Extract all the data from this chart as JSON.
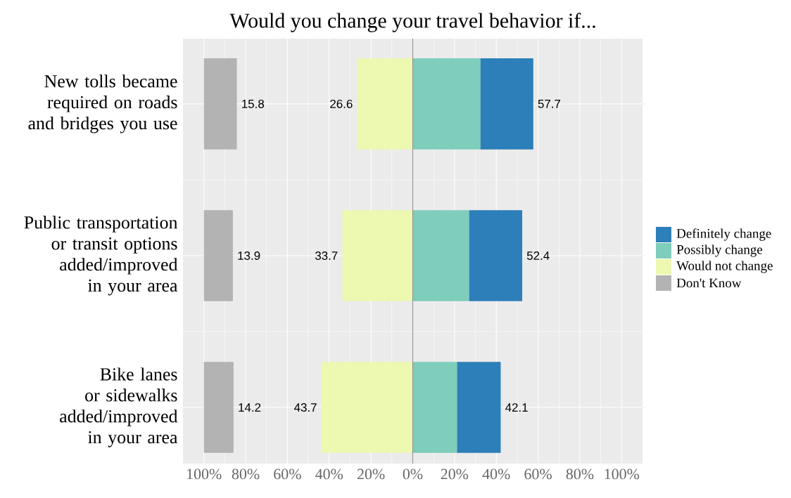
{
  "chart_data": {
    "type": "bar",
    "orientation": "horizontal",
    "title": "Would you change your travel behavior if...",
    "categories": [
      "New tolls became required on roads and bridges you use",
      "Public transportation or transit options added/improved in your area",
      "Bike lanes or sidewalks added/improved in your area"
    ],
    "series": [
      {
        "name": "Possibly change",
        "color": "#7fcdbb",
        "values": [
          32.4,
          27.0,
          21.2
        ],
        "base": [
          0,
          0,
          0
        ]
      },
      {
        "name": "Definitely change",
        "color": "#2c7fb8",
        "values": [
          25.3,
          25.4,
          20.9
        ],
        "base": [
          32.4,
          27.0,
          21.2
        ]
      },
      {
        "name": "Would not change",
        "color": "#edf8b1",
        "values": [
          26.6,
          33.7,
          43.7
        ],
        "base": [
          -26.6,
          -33.7,
          -43.7
        ],
        "value_labels": [
          "26.6",
          "33.7",
          "43.7"
        ]
      },
      {
        "name": "Don't Know",
        "color": "#b3b3b3",
        "values": [
          15.8,
          13.9,
          14.2
        ],
        "base": [
          -100,
          -100,
          -100
        ],
        "value_labels": [
          "15.8",
          "13.9",
          "14.2"
        ]
      }
    ],
    "annotations": [
      {
        "text": "57.7",
        "x": 57.7,
        "y": "New tolls became required on roads and bridges you use"
      },
      {
        "text": "52.4",
        "x": 52.4,
        "y": "Public transportation or transit options added/improved in your area"
      },
      {
        "text": "42.1",
        "x": 42.1,
        "y": "Bike lanes or sidewalks added/improved in your area"
      }
    ],
    "xlim": [
      -110,
      110
    ],
    "xticks": [
      {
        "value": -100,
        "label": "100%"
      },
      {
        "value": -80,
        "label": "80%"
      },
      {
        "value": -60,
        "label": "60%"
      },
      {
        "value": -40,
        "label": "40%"
      },
      {
        "value": -20,
        "label": "20%"
      },
      {
        "value": 0,
        "label": "0%"
      },
      {
        "value": 20,
        "label": "20%"
      },
      {
        "value": 40,
        "label": "40%"
      },
      {
        "value": 60,
        "label": "60%"
      },
      {
        "value": 80,
        "label": "80%"
      },
      {
        "value": 100,
        "label": "100%"
      }
    ],
    "ref_lines": [
      {
        "axis": "x",
        "value": 0,
        "color": "#8c8c8c"
      }
    ],
    "grid": true,
    "legend": "right"
  }
}
